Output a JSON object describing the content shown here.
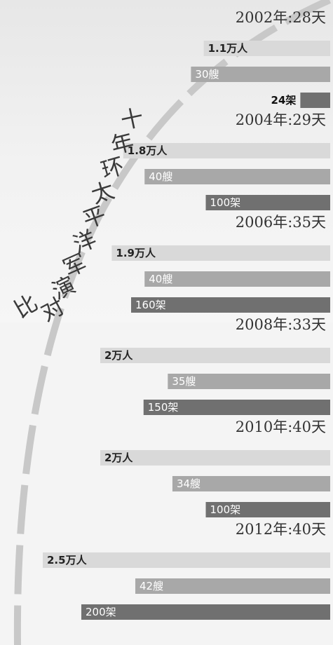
{
  "chart_data": {
    "type": "bar",
    "title": "十年环太平洋军演对比",
    "groups": [
      {
        "header": "2002年:28天",
        "personnel": "1.1万人",
        "ships": "30艘",
        "aircraft": "24架",
        "personnel_value": 11000,
        "ships_value": 30,
        "aircraft_value": 24
      },
      {
        "header": "2004年:29天",
        "personnel": "1.8万人",
        "ships": "40艘",
        "aircraft": "100架",
        "personnel_value": 18000,
        "ships_value": 40,
        "aircraft_value": 100
      },
      {
        "header": "2006年:35天",
        "personnel": "1.9万人",
        "ships": "40艘",
        "aircraft": "160架",
        "personnel_value": 19000,
        "ships_value": 40,
        "aircraft_value": 160
      },
      {
        "header": "2008年:33天",
        "personnel": "2万人",
        "ships": "35艘",
        "aircraft": "150架",
        "personnel_value": 20000,
        "ships_value": 35,
        "aircraft_value": 150
      },
      {
        "header": "2010年:40天",
        "personnel": "2万人",
        "ships": "34艘",
        "aircraft": "100架",
        "personnel_value": 20000,
        "ships_value": 34,
        "aircraft_value": 100
      },
      {
        "header": "2012年:40天",
        "personnel": "2.5万人",
        "ships": "42艘",
        "aircraft": "200架",
        "personnel_value": 25000,
        "ships_value": 42,
        "aircraft_value": 200
      }
    ],
    "colors": {
      "personnel": "#d9d9d9",
      "ships": "#a8a8a8",
      "aircraft": "#707070",
      "arc": "#c8c8c8",
      "header_text": "#333333"
    }
  }
}
